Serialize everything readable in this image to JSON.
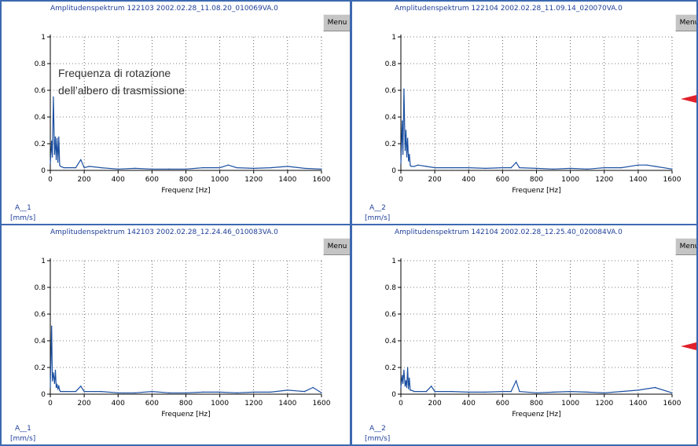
{
  "panels": [
    {
      "title": "Amplitudenspektrum 122103 2002.02.28_11.08.20_010069VA.0",
      "menu": "Menu",
      "channel": "A__1",
      "unit": "[mm/s]"
    },
    {
      "title": "Amplitudenspektrum 122104 2002.02.28_11.09.14_020070VA.0",
      "menu": "Menu",
      "channel": "A__2",
      "unit": "[mm/s]"
    },
    {
      "title": "Amplitudenspektrum 142103 2002.02.28_12.24.46_010083VA.0",
      "menu": "Menu",
      "channel": "A__1",
      "unit": "[mm/s]"
    },
    {
      "title": "Amplitudenspektrum 142104 2002.02.28_12.25.40_020084VA.0",
      "menu": "Menu",
      "channel": "A__2",
      "unit": "[mm/s]"
    }
  ],
  "annotation": {
    "line1": "Frequenza di rotazione",
    "line2": "dell’albero di trasmissione"
  },
  "colors": {
    "trace": "#1b4fa0",
    "frame": "#3d69b0",
    "marker": "#e0202a"
  },
  "chart_data": [
    {
      "type": "line",
      "title": "Amplitudenspektrum 122103 2002.02.28_11.08.20_010069VA.0",
      "xlabel": "Frequenz [Hz]",
      "ylabel": "",
      "xlim": [
        0,
        1600
      ],
      "ylim": [
        0,
        1
      ],
      "xticks": [
        "0",
        "200",
        "400",
        "600",
        "800",
        "1000",
        "1200",
        "1400",
        "1600"
      ],
      "yticks": [
        "0",
        "0.2",
        "0.4",
        "0.6",
        "0.8",
        "1"
      ],
      "grid": true,
      "series": [
        {
          "x": [
            0,
            8,
            12,
            18,
            25,
            30,
            35,
            40,
            45,
            50,
            55,
            60,
            80,
            100,
            150,
            180,
            200,
            230,
            300,
            400,
            500,
            600,
            700,
            800,
            900,
            1000,
            1050,
            1100,
            1200,
            1300,
            1400,
            1500,
            1600
          ],
          "y": [
            0.05,
            0.22,
            0.1,
            0.55,
            0.12,
            0.25,
            0.08,
            0.24,
            0.06,
            0.25,
            0.04,
            0.03,
            0.02,
            0.02,
            0.02,
            0.08,
            0.02,
            0.03,
            0.02,
            0.01,
            0.015,
            0.01,
            0.01,
            0.01,
            0.02,
            0.02,
            0.04,
            0.02,
            0.015,
            0.02,
            0.03,
            0.015,
            0.01
          ]
        }
      ]
    },
    {
      "type": "line",
      "title": "Amplitudenspektrum 122104 2002.02.28_11.09.14_020070VA.0",
      "xlabel": "Frequenz [Hz]",
      "ylabel": "",
      "xlim": [
        0,
        1600
      ],
      "ylim": [
        0,
        1
      ],
      "xticks": [
        "0",
        "200",
        "400",
        "600",
        "800",
        "1000",
        "1200",
        "1400",
        "1600"
      ],
      "yticks": [
        "0",
        "0.2",
        "0.4",
        "0.6",
        "0.8",
        "1"
      ],
      "grid": true,
      "series": [
        {
          "x": [
            0,
            8,
            12,
            18,
            25,
            30,
            35,
            40,
            45,
            50,
            55,
            60,
            80,
            100,
            150,
            200,
            300,
            400,
            500,
            600,
            650,
            680,
            700,
            800,
            900,
            1000,
            1100,
            1200,
            1300,
            1400,
            1450,
            1500,
            1600
          ],
          "y": [
            0.05,
            0.37,
            0.12,
            0.61,
            0.15,
            0.3,
            0.1,
            0.24,
            0.07,
            0.12,
            0.04,
            0.03,
            0.03,
            0.04,
            0.03,
            0.02,
            0.02,
            0.02,
            0.015,
            0.02,
            0.02,
            0.06,
            0.02,
            0.015,
            0.01,
            0.015,
            0.01,
            0.02,
            0.02,
            0.04,
            0.04,
            0.03,
            0.01
          ]
        }
      ]
    },
    {
      "type": "line",
      "title": "Amplitudenspektrum 142103 2002.02.28_12.24.46_010083VA.0",
      "xlabel": "Frequenz [Hz]",
      "ylabel": "",
      "xlim": [
        0,
        1600
      ],
      "ylim": [
        0,
        1
      ],
      "xticks": [
        "0",
        "200",
        "400",
        "600",
        "800",
        "1000",
        "1200",
        "1400",
        "1600"
      ],
      "yticks": [
        "0",
        "0.2",
        "0.4",
        "0.6",
        "0.8",
        "1"
      ],
      "grid": true,
      "series": [
        {
          "x": [
            0,
            8,
            12,
            18,
            25,
            30,
            35,
            40,
            45,
            50,
            55,
            60,
            80,
            100,
            150,
            180,
            200,
            300,
            400,
            500,
            600,
            700,
            800,
            900,
            1000,
            1100,
            1200,
            1300,
            1400,
            1500,
            1550,
            1600
          ],
          "y": [
            0.05,
            0.51,
            0.1,
            0.16,
            0.08,
            0.18,
            0.05,
            0.07,
            0.04,
            0.06,
            0.03,
            0.02,
            0.02,
            0.02,
            0.02,
            0.06,
            0.02,
            0.02,
            0.01,
            0.01,
            0.02,
            0.01,
            0.01,
            0.015,
            0.015,
            0.01,
            0.015,
            0.015,
            0.03,
            0.02,
            0.05,
            0.01
          ]
        }
      ]
    },
    {
      "type": "line",
      "title": "Amplitudenspektrum 142104 2002.02.28_12.25.40_020084VA.0",
      "xlabel": "Frequenz [Hz]",
      "ylabel": "",
      "xlim": [
        0,
        1600
      ],
      "ylim": [
        0,
        1
      ],
      "xticks": [
        "0",
        "200",
        "400",
        "600",
        "800",
        "1000",
        "1200",
        "1400",
        "1600"
      ],
      "yticks": [
        "0",
        "0.2",
        "0.4",
        "0.6",
        "0.8",
        "1"
      ],
      "grid": true,
      "series": [
        {
          "x": [
            0,
            8,
            12,
            18,
            25,
            30,
            35,
            40,
            45,
            50,
            55,
            60,
            80,
            100,
            150,
            180,
            200,
            300,
            400,
            500,
            600,
            650,
            680,
            700,
            800,
            900,
            1000,
            1100,
            1200,
            1300,
            1400,
            1500,
            1600
          ],
          "y": [
            0.05,
            0.14,
            0.08,
            0.18,
            0.06,
            0.1,
            0.05,
            0.2,
            0.04,
            0.12,
            0.03,
            0.03,
            0.02,
            0.02,
            0.02,
            0.06,
            0.02,
            0.02,
            0.015,
            0.015,
            0.02,
            0.02,
            0.1,
            0.02,
            0.01,
            0.015,
            0.02,
            0.015,
            0.01,
            0.02,
            0.03,
            0.05,
            0.01
          ]
        }
      ]
    }
  ]
}
